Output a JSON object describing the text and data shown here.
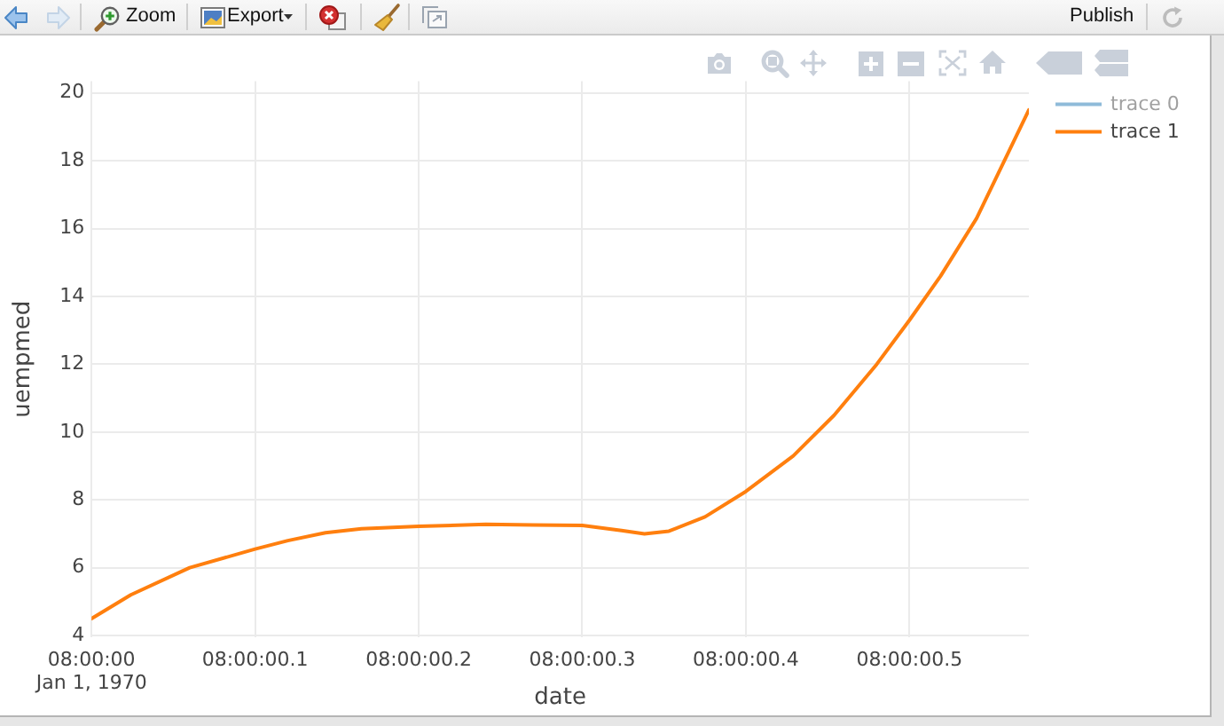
{
  "chart_data": {
    "type": "line",
    "xlabel": "date",
    "ylabel": "uempmed",
    "x": [
      "1970-01-01T08:00:00.000",
      "1970-01-01T08:00:00.024",
      "1970-01-01T08:00:00.060",
      "1970-01-01T08:00:00.100",
      "1970-01-01T08:00:00.120",
      "1970-01-01T08:00:00.143",
      "1970-01-01T08:00:00.165",
      "1970-01-01T08:00:00.200",
      "1970-01-01T08:00:00.241",
      "1970-01-01T08:00:00.270",
      "1970-01-01T08:00:00.300",
      "1970-01-01T08:00:00.324",
      "1970-01-01T08:00:00.338",
      "1970-01-01T08:00:00.353",
      "1970-01-01T08:00:00.375",
      "1970-01-01T08:00:00.400",
      "1970-01-01T08:00:00.429",
      "1970-01-01T08:00:00.454",
      "1970-01-01T08:00:00.480",
      "1970-01-01T08:00:00.500",
      "1970-01-01T08:00:00.519",
      "1970-01-01T08:00:00.541",
      "1970-01-01T08:00:00.573"
    ],
    "series": [
      {
        "name": "trace 0",
        "color": "#1f77b4",
        "values": [
          null,
          null,
          null,
          null,
          null,
          null,
          null,
          null,
          null,
          null,
          null,
          null,
          null,
          null,
          null,
          null,
          null,
          null,
          null,
          null,
          null,
          null,
          null
        ]
      },
      {
        "name": "trace 1",
        "color": "#ff7f0e",
        "values": [
          4.5,
          5.2,
          6.0,
          6.55,
          6.8,
          7.03,
          7.15,
          7.22,
          7.28,
          7.26,
          7.25,
          7.1,
          7.0,
          7.08,
          7.5,
          8.25,
          9.3,
          10.5,
          12.0,
          13.3,
          14.6,
          16.3,
          19.5
        ]
      }
    ],
    "xlim": [
      "1970-01-01T08:00:00.000",
      "1970-01-01T08:00:00.573"
    ],
    "xticks": [
      {
        "value": "1970-01-01T08:00:00.000",
        "label": "08:00:00\nJan 1, 1970"
      },
      {
        "value": "1970-01-01T08:00:00.100",
        "label": "08:00:00.1"
      },
      {
        "value": "1970-01-01T08:00:00.200",
        "label": "08:00:00.2"
      },
      {
        "value": "1970-01-01T08:00:00.300",
        "label": "08:00:00.3"
      },
      {
        "value": "1970-01-01T08:00:00.400",
        "label": "08:00:00.4"
      },
      {
        "value": "1970-01-01T08:00:00.500",
        "label": "08:00:00.5"
      }
    ],
    "ylim": [
      3.95,
      20.35
    ],
    "yticks": [
      4,
      6,
      8,
      10,
      12,
      14,
      16,
      18,
      20
    ],
    "grid": true,
    "legend": "top right",
    "annotations": [
      "Zoom",
      "Export",
      "Publish"
    ]
  }
}
